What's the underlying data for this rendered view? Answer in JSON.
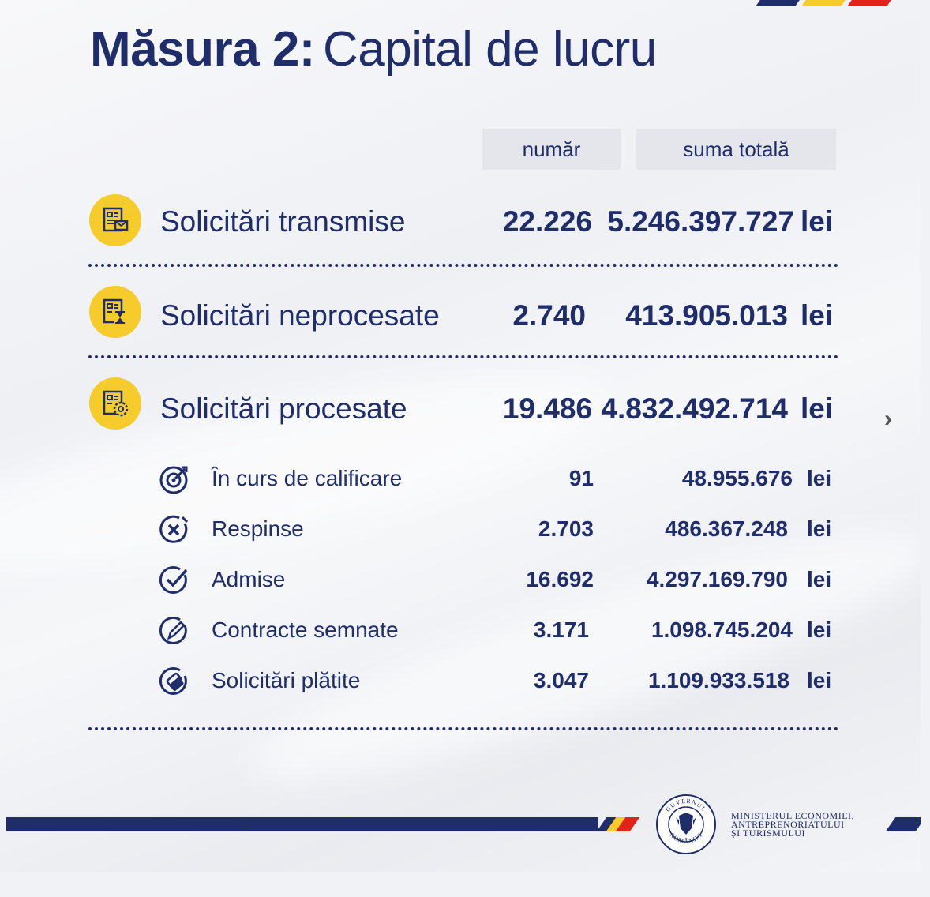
{
  "title": {
    "bold": "Măsura 2:",
    "light": "Capital de lucru"
  },
  "headers": {
    "count": "număr",
    "total": "suma totală"
  },
  "rows": [
    {
      "label": "Solicitări transmise",
      "count": "22.226",
      "sum": "5.246.397.727",
      "currency": "lei",
      "icon": "document-envelope-icon"
    },
    {
      "label": "Solicitări neprocesate",
      "count": "2.740",
      "sum": "413.905.013",
      "currency": "lei",
      "icon": "document-hourglass-icon"
    },
    {
      "label": "Solicitări procesate",
      "count": "19.486",
      "sum": "4.832.492.714",
      "currency": "lei",
      "icon": "document-gear-icon"
    }
  ],
  "subrows": [
    {
      "label": "În curs de calificare",
      "count": "91",
      "sum": "48.955.676",
      "currency": "lei",
      "icon": "target-icon"
    },
    {
      "label": "Respinse",
      "count": "2.703",
      "sum": "486.367.248",
      "currency": "lei",
      "icon": "reject-x-icon"
    },
    {
      "label": "Admise",
      "count": "16.692",
      "sum": "4.297.169.790",
      "currency": "lei",
      "icon": "checkmark-icon"
    },
    {
      "label": "Contracte semnate",
      "count": "3.171",
      "sum": "1.098.745.204",
      "currency": "lei",
      "icon": "pen-icon"
    },
    {
      "label": "Solicitări plătite",
      "count": "3.047",
      "sum": "1.109.933.518",
      "currency": "lei",
      "icon": "payment-icon"
    }
  ],
  "footer": {
    "seal_text": "GUVERNUL ROMÂNIEI",
    "ministry_lines": [
      "MINISTERUL ECONOMIEI,",
      "ANTREPRENORIATULUI",
      "ȘI TURISMULUI"
    ]
  },
  "colors": {
    "navy": "#1f2d6b",
    "yellow": "#f5cc2c",
    "red": "#e2231a",
    "header_bg": "#e4e6ec"
  }
}
